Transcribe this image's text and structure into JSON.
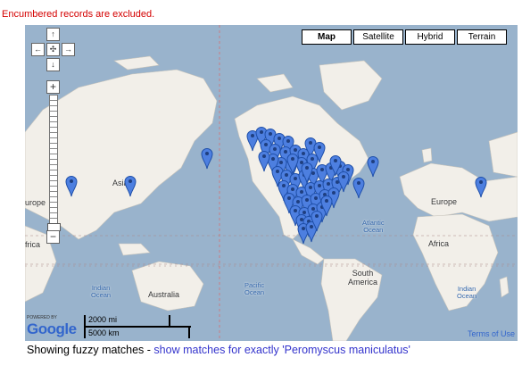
{
  "notice": "Encumbered records are excluded.",
  "map_types": [
    {
      "label": "Map",
      "active": true
    },
    {
      "label": "Satellite",
      "active": false
    },
    {
      "label": "Hybrid",
      "active": false
    },
    {
      "label": "Terrain",
      "active": false
    }
  ],
  "pan": {
    "up": "↑",
    "left": "←",
    "center": "✣",
    "right": "→",
    "down": "↓"
  },
  "zoom": {
    "in": "+",
    "out": "−"
  },
  "labels": {
    "asia": "Asia",
    "europe_left": "urope",
    "africa_left": "frica",
    "europe": "Europe",
    "africa": "Africa",
    "south_america_1": "South",
    "south_america_2": "America",
    "australia": "Australia",
    "indian_ocean_left_1": "Indian",
    "indian_ocean_left_2": "Ocean",
    "pacific_ocean_1": "Pacific",
    "pacific_ocean_2": "Ocean",
    "atlantic_ocean_1": "Atlantic",
    "atlantic_ocean_2": "Ocean",
    "indian_ocean_right_1": "Indian",
    "indian_ocean_right_2": "Ocean"
  },
  "google": {
    "powered": "POWERED BY",
    "logo": "Google"
  },
  "scale": {
    "mi": "2000 mi",
    "km": "5000 km"
  },
  "terms": "Terms of Use",
  "footer": {
    "text": "Showing fuzzy matches - ",
    "link": "show matches for exactly 'Peromyscus maniculatus'"
  },
  "colors": {
    "water": "#99b3cc",
    "land": "#f2efe9",
    "marker": "#4d7fe0"
  }
}
